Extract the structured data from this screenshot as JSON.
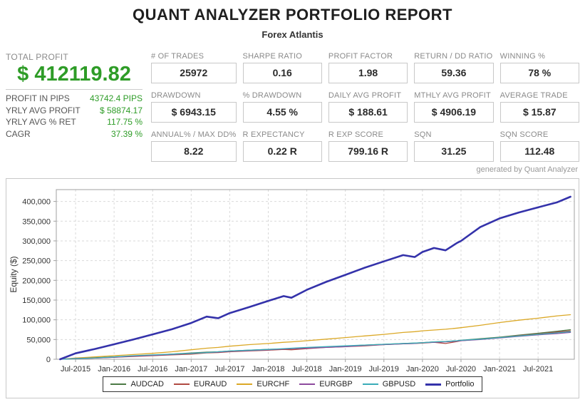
{
  "header": {
    "title": "QUANT ANALYZER PORTFOLIO REPORT",
    "subtitle": "Forex Atlantis"
  },
  "profit_panel": {
    "label": "TOTAL PROFIT",
    "value": "$ 412119.82",
    "rows": [
      {
        "label": "PROFIT IN PIPS",
        "value": "43742.4 PIPS"
      },
      {
        "label": "YRLY AVG PROFIT",
        "value": "$ 58874.17"
      },
      {
        "label": "YRLY AVG % RET",
        "value": "117.75 %"
      },
      {
        "label": "CAGR",
        "value": "37.39 %"
      }
    ]
  },
  "stats": {
    "cells": [
      {
        "label": "# OF TRADES",
        "value": "25972"
      },
      {
        "label": "SHARPE RATIO",
        "value": "0.16"
      },
      {
        "label": "PROFIT FACTOR",
        "value": "1.98"
      },
      {
        "label": "RETURN / DD RATIO",
        "value": "59.36"
      },
      {
        "label": "WINNING %",
        "value": "78 %"
      },
      {
        "label": "DRAWDOWN",
        "value": "$ 6943.15"
      },
      {
        "label": "% DRAWDOWN",
        "value": "4.55 %"
      },
      {
        "label": "DAILY AVG PROFIT",
        "value": "$ 188.61"
      },
      {
        "label": "MTHLY AVG PROFIT",
        "value": "$ 4906.19"
      },
      {
        "label": "AVERAGE TRADE",
        "value": "$ 15.87"
      },
      {
        "label": "ANNUAL% / MAX DD%",
        "value": "8.22"
      },
      {
        "label": "R EXPECTANCY",
        "value": "0.22 R"
      },
      {
        "label": "R EXP SCORE",
        "value": "799.16 R"
      },
      {
        "label": "SQN",
        "value": "31.25"
      },
      {
        "label": "SQN SCORE",
        "value": "112.48"
      }
    ]
  },
  "generated_by": "generated by Quant Analyzer",
  "colors": {
    "accent_green": "#2e9c27",
    "label_gray": "#8a8a8a",
    "box_border": "#c8c8c8",
    "grid_line": "#d9d9d9",
    "plot_border": "#a0a0a0"
  },
  "chart_data": {
    "type": "line",
    "title": "",
    "xlabel": "",
    "ylabel": "Equity ($)",
    "xlim": [
      2015.25,
      2021.97
    ],
    "ylim": [
      0,
      430000
    ],
    "grid": true,
    "legend_position": "bottom",
    "y_ticks": [
      0,
      50000,
      100000,
      150000,
      200000,
      250000,
      300000,
      350000,
      400000
    ],
    "x_ticks": [
      {
        "value": 2015.5,
        "label": "Jul-2015"
      },
      {
        "value": 2016.0,
        "label": "Jan-2016"
      },
      {
        "value": 2016.5,
        "label": "Jul-2016"
      },
      {
        "value": 2017.0,
        "label": "Jan-2017"
      },
      {
        "value": 2017.5,
        "label": "Jul-2017"
      },
      {
        "value": 2018.0,
        "label": "Jan-2018"
      },
      {
        "value": 2018.5,
        "label": "Jul-2018"
      },
      {
        "value": 2019.0,
        "label": "Jan-2019"
      },
      {
        "value": 2019.5,
        "label": "Jul-2019"
      },
      {
        "value": 2020.0,
        "label": "Jan-2020"
      },
      {
        "value": 2020.5,
        "label": "Jul-2020"
      },
      {
        "value": 2021.0,
        "label": "Jan-2021"
      },
      {
        "value": 2021.5,
        "label": "Jul-2021"
      }
    ],
    "x": [
      2015.3,
      2015.5,
      2015.75,
      2016.0,
      2016.25,
      2016.5,
      2016.75,
      2017.0,
      2017.2,
      2017.35,
      2017.5,
      2017.75,
      2018.0,
      2018.2,
      2018.3,
      2018.5,
      2018.75,
      2019.0,
      2019.25,
      2019.5,
      2019.75,
      2019.9,
      2020.0,
      2020.15,
      2020.3,
      2020.45,
      2020.5,
      2020.75,
      2021.0,
      2021.25,
      2021.5,
      2021.75,
      2021.92
    ],
    "series": [
      {
        "name": "AUDCAD",
        "color": "#4c7a45",
        "width": 1.3,
        "values": [
          0,
          2000,
          4000,
          6000,
          8000,
          10000,
          13000,
          16000,
          18000,
          19000,
          21000,
          23000,
          25000,
          26000,
          27000,
          29000,
          31000,
          33000,
          36000,
          38000,
          40000,
          41000,
          42000,
          44000,
          45000,
          47000,
          48000,
          52000,
          56000,
          61000,
          66000,
          71000,
          75000
        ]
      },
      {
        "name": "EURAUD",
        "color": "#b04a42",
        "width": 1.3,
        "values": [
          0,
          1000,
          3000,
          5000,
          7000,
          9000,
          11000,
          13000,
          16000,
          17000,
          19000,
          21000,
          23000,
          25000,
          24000,
          27000,
          30000,
          32000,
          34000,
          37000,
          39000,
          40000,
          41000,
          43000,
          40000,
          45000,
          47000,
          51000,
          55000,
          60000,
          64000,
          69000,
          72000
        ]
      },
      {
        "name": "EURCHF",
        "color": "#dba826",
        "width": 1.3,
        "values": [
          0,
          3000,
          6000,
          9000,
          12000,
          15000,
          19000,
          24000,
          28000,
          30000,
          33000,
          37000,
          40000,
          43000,
          44000,
          47000,
          51000,
          55000,
          59000,
          63000,
          68000,
          70000,
          72000,
          74000,
          76000,
          79000,
          80000,
          86000,
          93000,
          99000,
          104000,
          110000,
          113000
        ]
      },
      {
        "name": "EURGBP",
        "color": "#8d4a9e",
        "width": 1.3,
        "values": [
          0,
          2000,
          3000,
          5000,
          8000,
          10000,
          12000,
          15000,
          17000,
          18000,
          20000,
          22000,
          24000,
          26000,
          27000,
          28000,
          30000,
          32000,
          35000,
          37000,
          39000,
          40000,
          42000,
          43000,
          44000,
          46000,
          47000,
          50000,
          54000,
          58000,
          62000,
          65000,
          68000
        ]
      },
      {
        "name": "GBPUSD",
        "color": "#3aacb8",
        "width": 1.3,
        "values": [
          0,
          1500,
          3500,
          6000,
          9000,
          11000,
          13000,
          15000,
          17000,
          19000,
          21000,
          23000,
          25000,
          27000,
          28000,
          30000,
          32000,
          34000,
          36000,
          38000,
          40000,
          41000,
          42000,
          44000,
          45000,
          47000,
          48000,
          51000,
          55000,
          59000,
          63000,
          67000,
          70000
        ]
      },
      {
        "name": "Portfolio",
        "color": "#3432aa",
        "width": 2.6,
        "values": [
          0,
          15000,
          26000,
          38000,
          50000,
          63000,
          76000,
          92000,
          108000,
          104000,
          117000,
          132000,
          148000,
          160000,
          156000,
          176000,
          196000,
          214000,
          232000,
          248000,
          264000,
          259000,
          272000,
          282000,
          276000,
          295000,
          300000,
          335000,
          357000,
          372000,
          385000,
          398000,
          412000
        ]
      }
    ]
  }
}
